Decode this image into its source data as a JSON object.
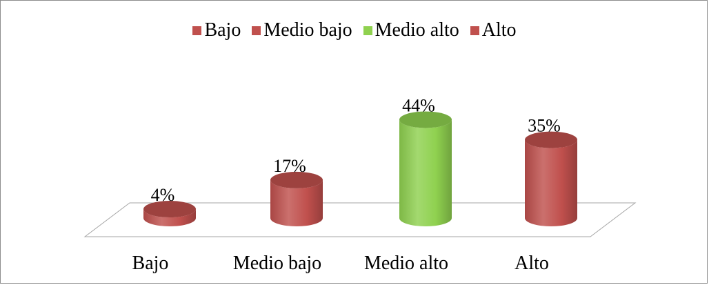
{
  "chart_data": {
    "type": "bar",
    "categories": [
      "Bajo",
      "Medio bajo",
      "Medio alto",
      "Alto"
    ],
    "values": [
      4,
      17,
      44,
      35
    ],
    "value_labels": [
      "4%",
      "17%",
      "44%",
      "35%"
    ],
    "ylim": [
      0,
      50
    ],
    "bar_shape": "cylinder",
    "three_d": true,
    "grid": false,
    "legend": {
      "position": "top",
      "entries": [
        "Bajo",
        "Medio bajo",
        "Medio alto",
        "Alto"
      ]
    },
    "colors": {
      "Bajo": "#c0504d",
      "Medio bajo": "#c0504d",
      "Medio alto": "#8fd14f",
      "Alto": "#c0504d"
    }
  }
}
